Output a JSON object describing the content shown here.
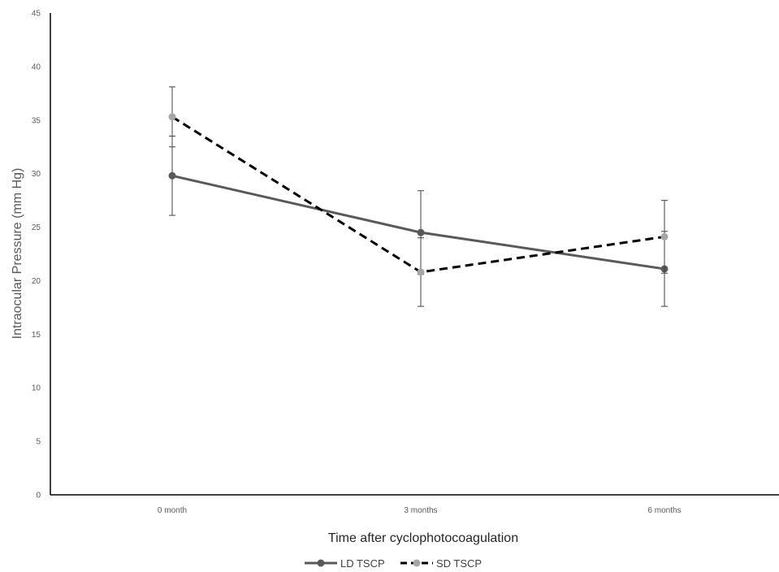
{
  "chart_data": {
    "type": "line",
    "categories": [
      "0 month",
      "3 months",
      "6 months"
    ],
    "xlabel": "Time after cyclophotocoagulation",
    "ylabel": "Intraocular Pressure (mm Hg)",
    "ylim": [
      0,
      45
    ],
    "yticks": [
      0,
      5,
      10,
      15,
      20,
      25,
      30,
      35,
      40,
      45
    ],
    "grid": false,
    "legend_position": "bottom",
    "series": [
      {
        "name": "LD TSCP",
        "values": [
          29.8,
          24.5,
          21.1
        ],
        "error": [
          3.7,
          3.9,
          3.5
        ],
        "color": "#595959",
        "line_style": "solid"
      },
      {
        "name": "SD TSCP",
        "values": [
          35.3,
          20.8,
          24.1
        ],
        "error": [
          2.8,
          3.2,
          3.4
        ],
        "color": "#000000",
        "marker_color": "#a6a6a6",
        "line_style": "dashed"
      }
    ]
  }
}
